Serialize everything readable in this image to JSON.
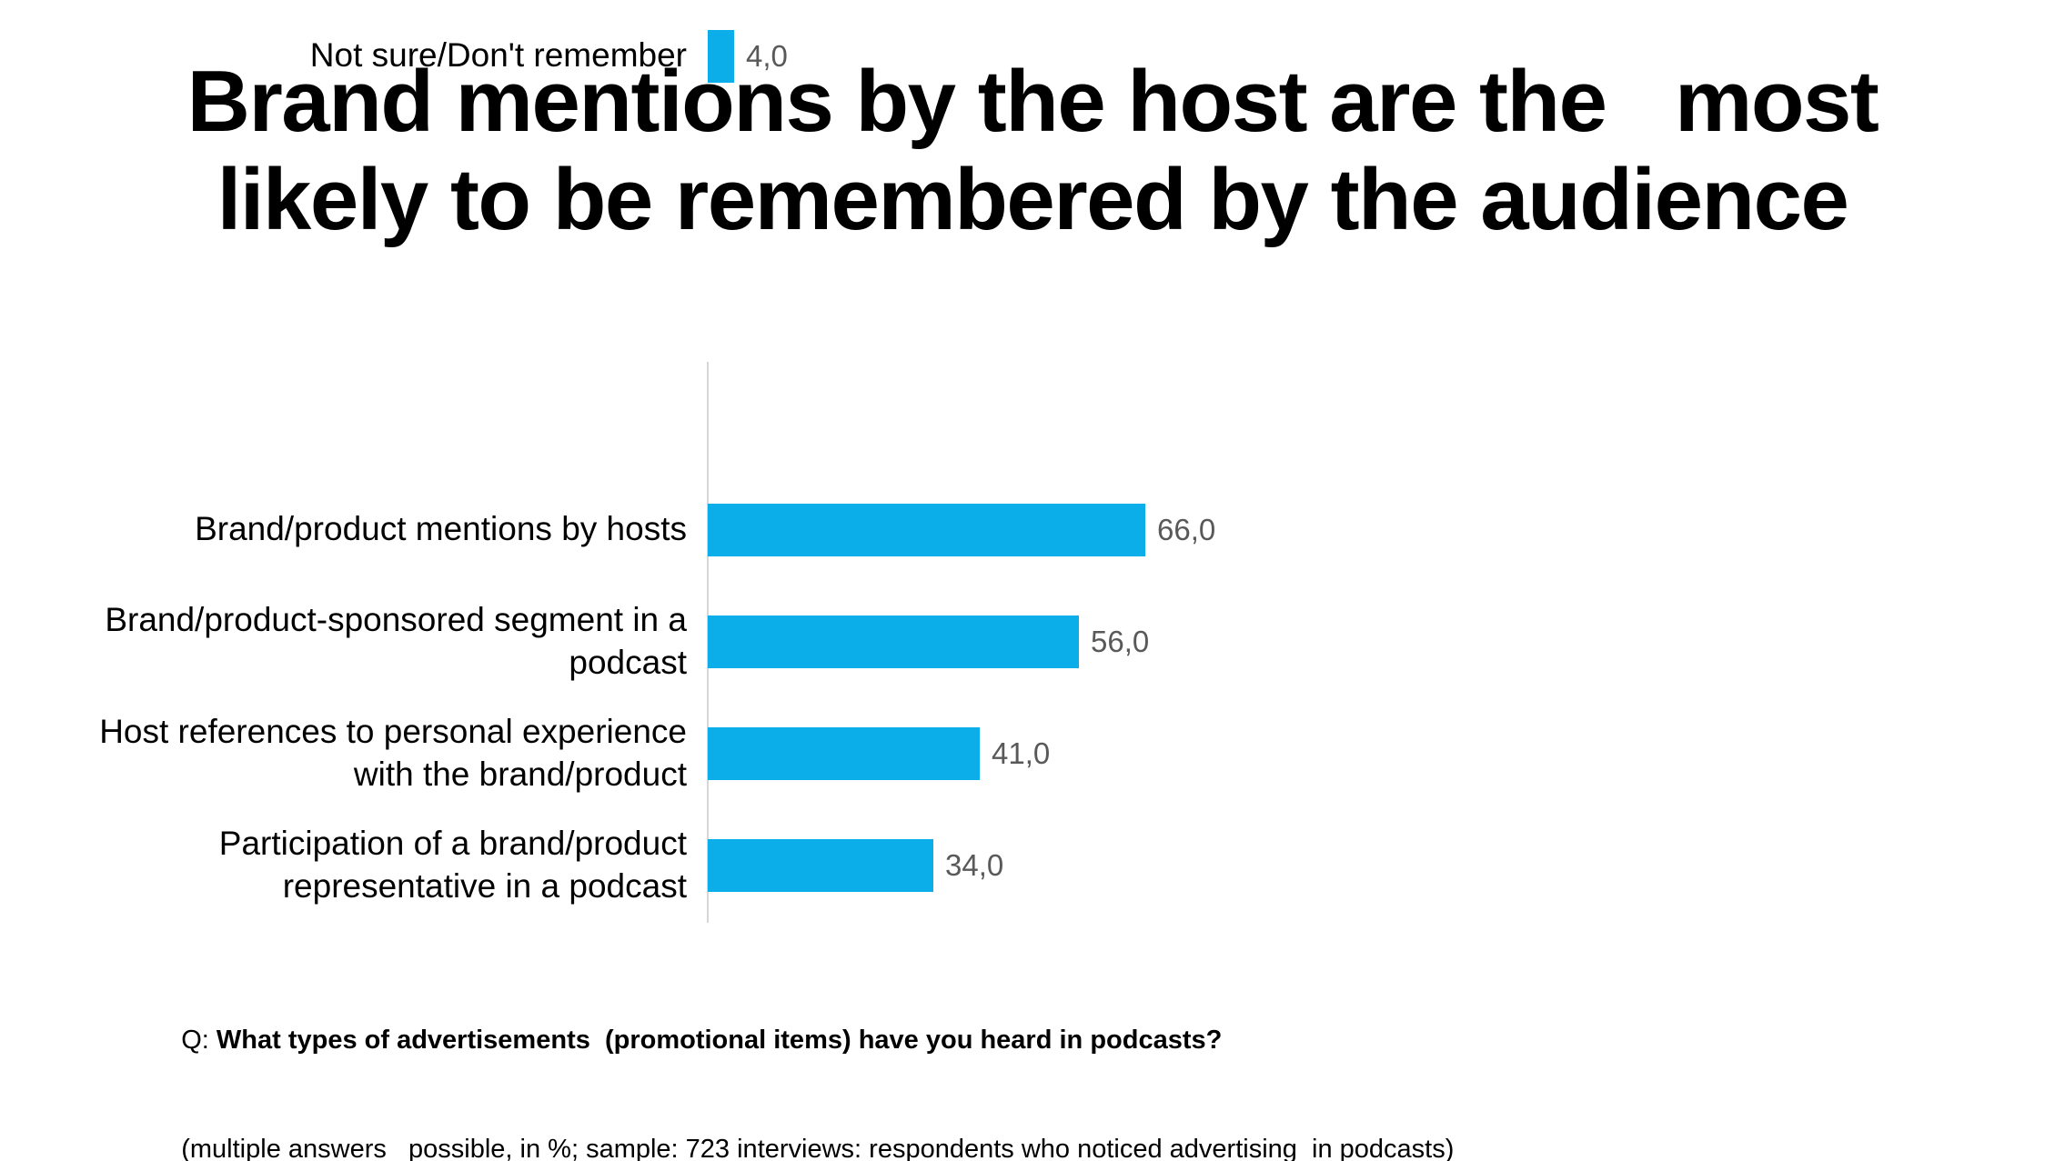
{
  "title": {
    "text": "Brand mentions by the host are the   most\nlikely to be remembered by the audience"
  },
  "chart_data": {
    "type": "bar",
    "orientation": "horizontal",
    "title": "Brand mentions by the host are the most likely to be remembered by the audience",
    "categories": [
      "Brand/product mentions by hosts",
      "Brand/product-sponsored segment in a podcast",
      "Host references to personal experience with the brand/product",
      "Participation of a brand/product representative in a podcast",
      "Not sure/Don't remember"
    ],
    "wrapped": [
      "Brand/product mentions by hosts",
      "Brand/product-sponsored segment in a\npodcast",
      "Host references to personal experience\nwith the brand/product",
      "Participation of a brand/product\nrepresentative in a podcast",
      "Not sure/Don't remember"
    ],
    "values": [
      66,
      56,
      41,
      34,
      4
    ],
    "value_labels": [
      "66,0",
      "56,0",
      "41,0",
      "34,0",
      "4,0"
    ],
    "unit": "%",
    "xlim": [
      0,
      100
    ],
    "grid": false,
    "legend": false,
    "bar_color": "#0baee9",
    "value_label_color": "#595959",
    "axis_line_color": "#d6d6d6"
  },
  "footnote": {
    "q_prefix": "Q: ",
    "question_bold": "What types of advertisements  (promotional items) have you heard in podcasts?",
    "note": "(multiple answers   possible, in %; sample: 723 interviews: respondents who noticed advertising  in podcasts)"
  }
}
